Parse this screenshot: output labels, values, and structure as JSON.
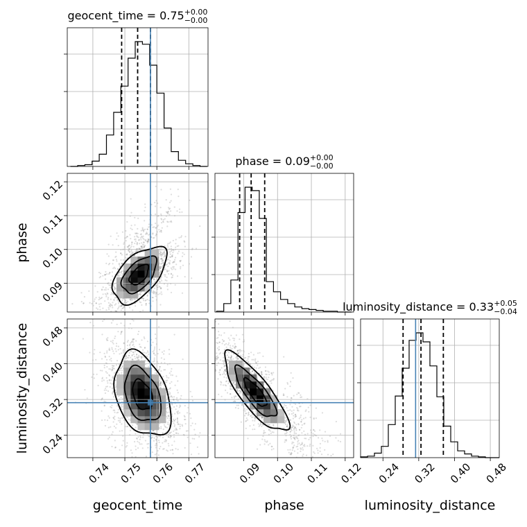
{
  "chart_data": {
    "type": "corner",
    "parameters": [
      {
        "name": "geocent_time",
        "range": [
          0.732,
          0.776
        ],
        "ticks": [
          0.74,
          0.75,
          0.76,
          0.77
        ],
        "tick_labels": [
          "0.74",
          "0.75",
          "0.76",
          "0.77"
        ],
        "median": 0.754,
        "quantiles": [
          0.749,
          0.754,
          0.758
        ],
        "truth": 0.758,
        "title_main": "geocent_time = 0.75",
        "title_plus": "+0.00",
        "title_minus": "−0.00",
        "axis_label": "geocent_time",
        "hist_edges_start": 0.733,
        "hist_bin_width": 0.00225,
        "hist_counts": [
          0,
          1,
          2,
          6,
          14,
          36,
          62,
          92,
          124,
          143,
          140,
          116,
          84,
          44,
          17,
          7,
          3,
          1,
          0
        ]
      },
      {
        "name": "phase",
        "range": [
          0.0815,
          0.1225
        ],
        "ticks": [
          0.09,
          0.1,
          0.11,
          0.12
        ],
        "tick_labels": [
          "0.09",
          "0.10",
          "0.11",
          "0.12"
        ],
        "quantiles": [
          0.0888,
          0.0922,
          0.0962
        ],
        "truth": null,
        "title_main": "phase = 0.09",
        "title_plus": "+0.00",
        "title_minus": "−0.00",
        "axis_label": "phase",
        "hist_edges_start": 0.082,
        "hist_bin_width": 0.0021,
        "hist_counts": [
          1,
          10,
          38,
          118,
          148,
          144,
          111,
          36,
          24,
          15,
          10,
          6,
          4,
          3,
          2,
          1,
          1,
          0,
          0
        ]
      },
      {
        "name": "luminosity_distance",
        "range": [
          0.19,
          0.5
        ],
        "ticks": [
          0.24,
          0.32,
          0.4,
          0.48
        ],
        "tick_labels": [
          "0.24",
          "0.32",
          "0.40",
          "0.48"
        ],
        "quantiles": [
          0.285,
          0.325,
          0.375
        ],
        "truth": 0.313,
        "title_main": "luminosity_distance = 0.33",
        "title_plus": "+0.05",
        "title_minus": "−0.04",
        "axis_label": "luminosity_distance",
        "hist_edges_start": 0.19,
        "hist_bin_width": 0.0155,
        "hist_counts": [
          1,
          2,
          6,
          15,
          44,
          82,
          119,
          156,
          166,
          154,
          122,
          81,
          42,
          21,
          9,
          5,
          2,
          1,
          0,
          0
        ]
      }
    ],
    "truth_color": "#4682b4",
    "levels": [
      "39%",
      "86%",
      "99%"
    ]
  }
}
